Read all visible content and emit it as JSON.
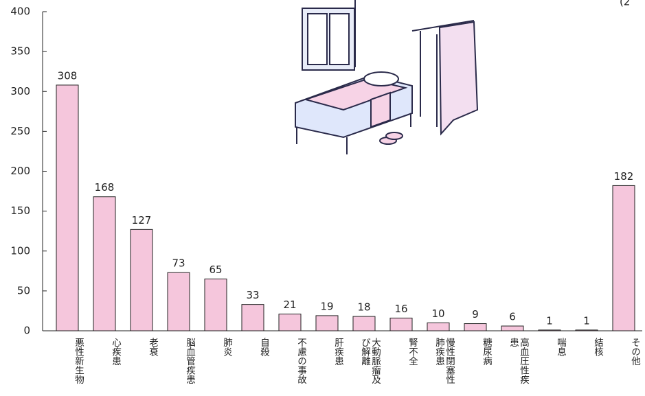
{
  "chart_data": {
    "type": "bar",
    "note": "(2",
    "categories": [
      "悪性新生物",
      "心疾患",
      "老衰",
      "脳血管疾患",
      "肺炎",
      "自殺",
      "不慮の事故",
      "肝疾患",
      "大動脈瘤及び解離",
      "腎不全",
      "慢性閉塞性肺疾患",
      "糖尿病",
      "高血圧性疾患",
      "喘息",
      "結核",
      "その他"
    ],
    "values": [
      308,
      168,
      127,
      73,
      65,
      33,
      21,
      19,
      18,
      16,
      10,
      9,
      6,
      1,
      1,
      182
    ],
    "color": "#f5c6dc",
    "ylim": [
      0,
      400
    ],
    "yticks": [
      0,
      50,
      100,
      150,
      200,
      250,
      300,
      350,
      400
    ],
    "grid": false
  }
}
